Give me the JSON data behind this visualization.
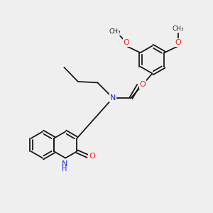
{
  "background_color": "#efefef",
  "bond_color": "#1a1a1a",
  "N_color": "#2020ff",
  "O_color": "#ff2020",
  "text_color": "#1a1a1a",
  "bond_lw": 1.3,
  "figsize": [
    3.0,
    3.0
  ],
  "dpi": 100,
  "xlim": [
    0,
    10
  ],
  "ylim": [
    0,
    10
  ]
}
